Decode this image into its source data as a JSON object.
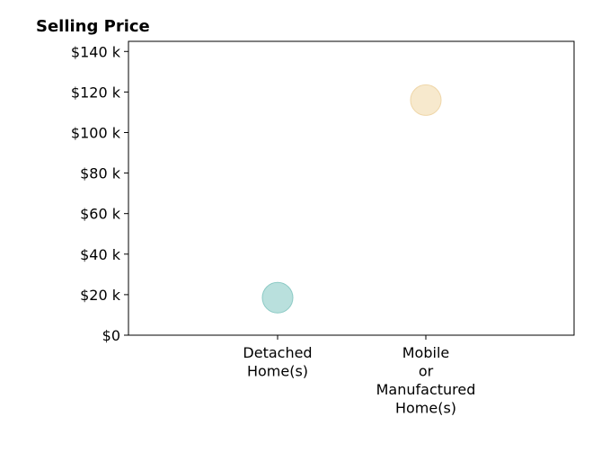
{
  "chart_data": {
    "type": "scatter",
    "title": "Selling Price",
    "xlabel": "",
    "ylabel": "",
    "categories": [
      "Detached\nHome(s)",
      "Mobile\nor\nManufactured\nHome(s)"
    ],
    "values": [
      18500,
      116000
    ],
    "ylim": [
      0,
      145000
    ],
    "yticks": [
      0,
      20000,
      40000,
      60000,
      80000,
      100000,
      120000,
      140000
    ],
    "ytick_labels": [
      "$0",
      "$20 k",
      "$40 k",
      "$60 k",
      "$80 k",
      "$100 k",
      "$120 k",
      "$140 k"
    ],
    "point_colors": [
      "#a8d8d4",
      "#f5e3c0"
    ],
    "point_edge_colors": [
      "#8ccac5",
      "#efd6a8"
    ],
    "grid": false,
    "legend": "none"
  }
}
